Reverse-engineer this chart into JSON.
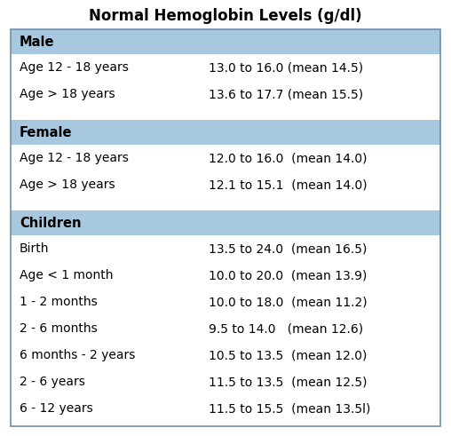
{
  "title": "Normal Hemoglobin Levels (g/dl)",
  "header_color": "#A8C8E0",
  "bg_color": "#FFFFFF",
  "outer_border_color": "#7090A8",
  "text_color": "#000000",
  "sections": [
    {
      "header": "Male",
      "rows": [
        [
          "Age 12 - 18 years",
          "13.0 to 16.0 (mean 14.5)"
        ],
        [
          "Age > 18 years",
          "13.6 to 17.7 (mean 15.5)"
        ]
      ]
    },
    {
      "header": "Female",
      "rows": [
        [
          "Age 12 - 18 years",
          "12.0 to 16.0  (mean 14.0)"
        ],
        [
          "Age > 18 years",
          "12.1 to 15.1  (mean 14.0)"
        ]
      ]
    },
    {
      "header": "Children",
      "rows": [
        [
          "Birth",
          "13.5 to 24.0  (mean 16.5)"
        ],
        [
          "Age < 1 month",
          "10.0 to 20.0  (mean 13.9)"
        ],
        [
          "1 - 2 months",
          "10.0 to 18.0  (mean 11.2)"
        ],
        [
          "2 - 6 months",
          "9.5 to 14.0   (mean 12.6)"
        ],
        [
          "6 months - 2 years",
          "10.5 to 13.5  (mean 12.0)"
        ],
        [
          "2 - 6 years",
          "11.5 to 13.5  (mean 12.5)"
        ],
        [
          "6 - 12 years",
          "11.5 to 15.5  (mean 13.5l)"
        ]
      ]
    }
  ],
  "title_fontsize": 12,
  "header_fontsize": 10.5,
  "row_fontsize": 10
}
